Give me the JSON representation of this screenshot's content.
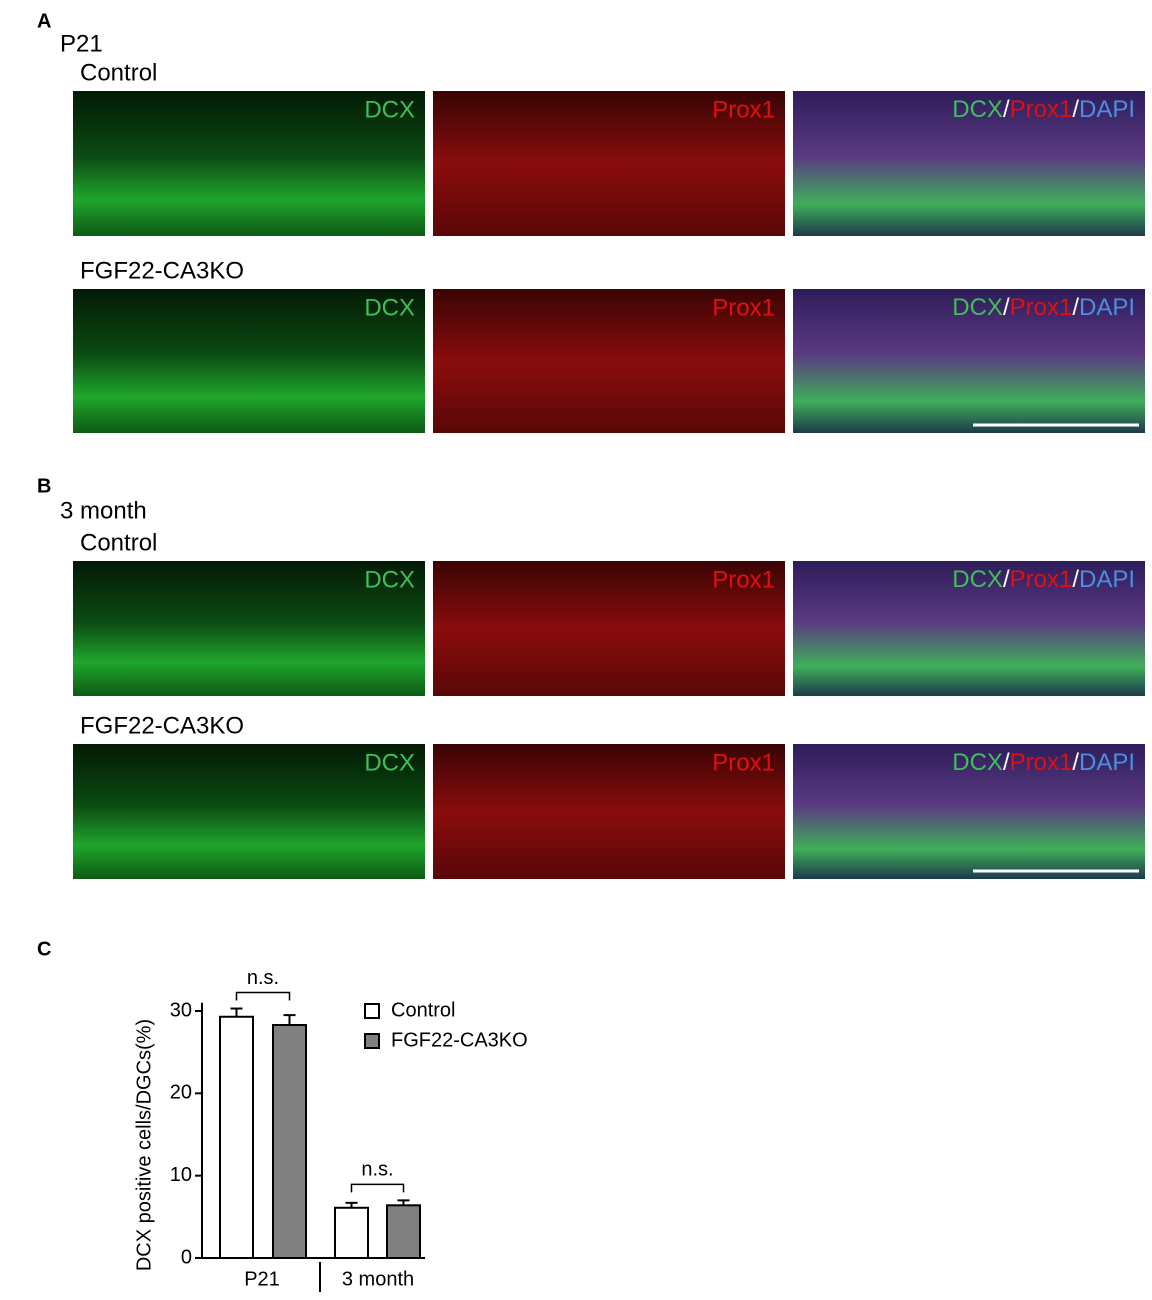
{
  "figure": {
    "panels": [
      {
        "letter": "A",
        "age": "P21",
        "rows": [
          "Control",
          "FGF22-CA3KO"
        ]
      },
      {
        "letter": "B",
        "age": "3 month",
        "rows": [
          "Control",
          "FGF22-CA3KO"
        ]
      }
    ],
    "channels": [
      "DCX",
      "Prox1",
      "DAPI"
    ],
    "separator": "/",
    "letter_c": "C"
  },
  "chart_data": {
    "type": "bar",
    "y_label": "DCX positive cells/DGCs(%)",
    "categories": [
      "P21",
      "3 month"
    ],
    "series": [
      {
        "name": "Control",
        "color": "#ffffff",
        "values": [
          29.3,
          6.1
        ],
        "errors": [
          1.0,
          0.6
        ]
      },
      {
        "name": "FGF22-CA3KO",
        "color": "#808080",
        "values": [
          28.3,
          6.4
        ],
        "errors": [
          1.2,
          0.6
        ]
      }
    ],
    "ylim": [
      0,
      31
    ],
    "yticks": [
      0,
      10,
      20,
      30
    ],
    "annotations": [
      "n.s.",
      "n.s."
    ]
  }
}
